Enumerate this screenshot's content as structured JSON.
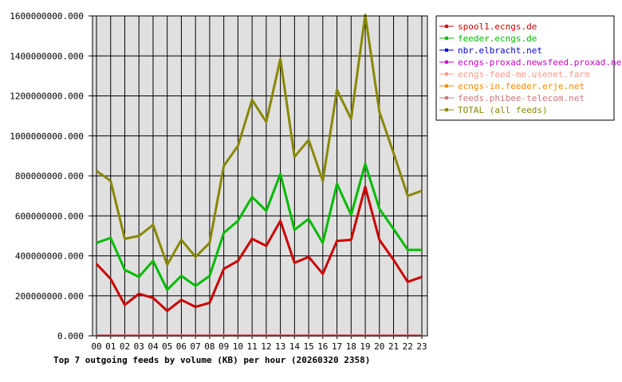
{
  "chart_data": {
    "type": "line",
    "title": "Top 7 outgoing feeds by volume (KB) per hour (20260320 2358)",
    "xlabel": "",
    "ylabel": "",
    "ylim": [
      0,
      1600000000
    ],
    "y_ticks": [
      "0.000",
      "200000000.000",
      "400000000.000",
      "600000000.000",
      "800000000.000",
      "1000000000.000",
      "1200000000.000",
      "1400000000.000",
      "1600000000.000"
    ],
    "y_tick_values": [
      0,
      200000000,
      400000000,
      600000000,
      800000000,
      1000000000,
      1200000000,
      1400000000,
      1600000000
    ],
    "categories": [
      "00",
      "01",
      "02",
      "03",
      "04",
      "05",
      "06",
      "07",
      "08",
      "09",
      "10",
      "11",
      "12",
      "13",
      "14",
      "15",
      "16",
      "17",
      "18",
      "19",
      "20",
      "21",
      "22",
      "23"
    ],
    "grid": true,
    "legend_position": "right",
    "series": [
      {
        "name": "spool1.ecngs.de",
        "color": "#cc0000",
        "values": [
          360000000,
          285000000,
          155000000,
          210000000,
          190000000,
          125000000,
          180000000,
          145000000,
          165000000,
          335000000,
          375000000,
          485000000,
          450000000,
          575000000,
          365000000,
          395000000,
          310000000,
          475000000,
          480000000,
          745000000,
          480000000,
          380000000,
          270000000,
          295000000
        ]
      },
      {
        "name": "feeder.ecngs.de",
        "color": "#00bb00",
        "values": [
          465000000,
          490000000,
          330000000,
          295000000,
          375000000,
          230000000,
          300000000,
          250000000,
          300000000,
          515000000,
          575000000,
          695000000,
          625000000,
          810000000,
          530000000,
          585000000,
          465000000,
          760000000,
          605000000,
          860000000,
          635000000,
          535000000,
          430000000,
          430000000
        ]
      },
      {
        "name": "nbr.elbracht.net",
        "color": "#0000cc",
        "values": [
          2000000,
          2000000,
          2000000,
          2000000,
          2000000,
          2000000,
          2000000,
          2000000,
          2000000,
          2000000,
          2000000,
          2000000,
          2000000,
          2000000,
          2000000,
          2000000,
          2000000,
          2000000,
          2000000,
          2000000,
          2000000,
          2000000,
          2000000,
          2000000
        ]
      },
      {
        "name": "ecngs-proxad.newsfeed.proxad.net",
        "color": "#cc00cc",
        "values": [
          2000000,
          2000000,
          2000000,
          2000000,
          2000000,
          2000000,
          2000000,
          2000000,
          2000000,
          2000000,
          2000000,
          2000000,
          2000000,
          2000000,
          2000000,
          2000000,
          2000000,
          2000000,
          2000000,
          2000000,
          2000000,
          2000000,
          2000000,
          2000000
        ]
      },
      {
        "name": "ecngs-feed-me.usenet.farm",
        "color": "#ff9988",
        "values": [
          2000000,
          2000000,
          2000000,
          2000000,
          2000000,
          2000000,
          2000000,
          2000000,
          2000000,
          2000000,
          2000000,
          2000000,
          2000000,
          2000000,
          2000000,
          2000000,
          2000000,
          2000000,
          2000000,
          2000000,
          2000000,
          2000000,
          2000000,
          2000000
        ]
      },
      {
        "name": "ecngs-in.feeder.erje.net",
        "color": "#ff8800",
        "values": [
          2000000,
          2000000,
          2000000,
          2000000,
          2000000,
          2000000,
          2000000,
          2000000,
          2000000,
          2000000,
          2000000,
          2000000,
          2000000,
          2000000,
          2000000,
          2000000,
          2000000,
          2000000,
          2000000,
          2000000,
          2000000,
          2000000,
          2000000,
          2000000
        ]
      },
      {
        "name": "feeds.phibee-telecom.net",
        "color": "#cc7777",
        "values": [
          2000000,
          2000000,
          2000000,
          2000000,
          2000000,
          2000000,
          2000000,
          2000000,
          2000000,
          2000000,
          2000000,
          2000000,
          2000000,
          2000000,
          2000000,
          2000000,
          2000000,
          2000000,
          2000000,
          2000000,
          2000000,
          2000000,
          2000000,
          2000000
        ]
      },
      {
        "name": "TOTAL (all feeds)",
        "color": "#888800",
        "values": [
          825000000,
          775000000,
          485000000,
          500000000,
          555000000,
          355000000,
          480000000,
          395000000,
          465000000,
          850000000,
          950000000,
          1180000000,
          1070000000,
          1385000000,
          895000000,
          980000000,
          775000000,
          1230000000,
          1085000000,
          1605000000,
          1120000000,
          915000000,
          700000000,
          725000000
        ]
      }
    ]
  }
}
